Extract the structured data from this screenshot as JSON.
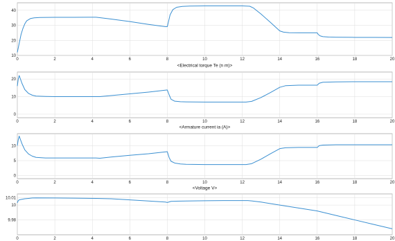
{
  "series_color": "#3a8fd1",
  "chart_data": [
    {
      "type": "line",
      "title": "",
      "xlim": [
        0,
        20
      ],
      "ylim": [
        10,
        45
      ],
      "xticks": [
        0,
        2,
        4,
        6,
        8,
        10,
        12,
        14,
        16,
        18,
        20
      ],
      "xtick_labels": [
        "0",
        "2",
        "4",
        "6",
        "8",
        "10",
        "12",
        "14",
        "16",
        "18",
        "20"
      ],
      "yticks": [
        10,
        20,
        30,
        40
      ],
      "ytick_labels": [
        "10",
        "20",
        "30",
        "40"
      ],
      "grid": true,
      "series": [
        {
          "x": [
            0,
            0.05,
            0.1,
            0.2,
            0.3,
            0.4,
            0.5,
            0.7,
            0.9,
            1.2,
            2,
            3,
            4.2,
            4.4,
            5,
            6,
            7,
            7.9,
            8.0,
            8.15,
            8.3,
            8.5,
            8.8,
            9.2,
            10,
            11,
            12,
            12.4,
            12.6,
            13,
            13.5,
            14.0,
            14.2,
            14.5,
            15,
            15.5,
            16.0,
            16.05,
            16.15,
            16.3,
            16.6,
            17,
            18,
            19,
            20
          ],
          "y": [
            12,
            15,
            18,
            24,
            28,
            31,
            33,
            34.5,
            35,
            35.2,
            35.3,
            35.3,
            35.4,
            35.1,
            34.2,
            32.5,
            30.6,
            29.1,
            29.1,
            37,
            40.5,
            42,
            42.6,
            42.8,
            42.9,
            42.9,
            42.9,
            42.7,
            41.5,
            37.5,
            32,
            26.3,
            25.5,
            25.1,
            25.0,
            25.0,
            25.0,
            24,
            23,
            22.5,
            22.2,
            22.1,
            22.0,
            22.0,
            21.9
          ]
        }
      ]
    },
    {
      "type": "line",
      "title": "<Electrical torque Te (n m)>",
      "xlim": [
        0,
        20
      ],
      "ylim": [
        -2,
        24
      ],
      "xticks": [
        0,
        2,
        4,
        6,
        8,
        10,
        12,
        14,
        16,
        18,
        20
      ],
      "xtick_labels": [
        "0",
        "2",
        "4",
        "6",
        "8",
        "10",
        "12",
        "14",
        "16",
        "18",
        "20"
      ],
      "yticks": [
        0,
        10,
        20
      ],
      "ytick_labels": [
        "0",
        "10",
        "20"
      ],
      "grid": true,
      "series": [
        {
          "x": [
            0,
            0.05,
            0.1,
            0.15,
            0.25,
            0.4,
            0.6,
            0.8,
            1.0,
            1.5,
            2,
            3,
            4.2,
            4.4,
            5,
            6,
            7,
            8.0,
            8.1,
            8.2,
            8.4,
            8.7,
            9,
            10,
            11,
            12.2,
            12.5,
            13,
            13.5,
            14.0,
            14.3,
            15,
            16.0,
            16.1,
            16.3,
            17,
            18,
            19,
            20
          ],
          "y": [
            16,
            20,
            22,
            20.5,
            17.5,
            14,
            11.8,
            10.8,
            10.3,
            10.1,
            10.0,
            10.0,
            10.0,
            10.0,
            10.6,
            11.6,
            12.6,
            13.8,
            11,
            8.5,
            7.4,
            7.1,
            7.0,
            6.9,
            6.9,
            6.9,
            7.3,
            9.5,
            12.3,
            15.3,
            16.2,
            16.5,
            16.5,
            17.6,
            18.2,
            18.4,
            18.5,
            18.5,
            18.5
          ]
        }
      ]
    },
    {
      "type": "line",
      "title": "<Armature current ia (A)>",
      "xlim": [
        0,
        20
      ],
      "ylim": [
        -1,
        14
      ],
      "xticks": [
        0,
        2,
        4,
        6,
        8,
        10,
        12,
        14,
        16,
        18,
        20
      ],
      "xtick_labels": [
        "0",
        "2",
        "4",
        "6",
        "8",
        "10",
        "12",
        "14",
        "16",
        "18",
        "20"
      ],
      "yticks": [
        0,
        5,
        10
      ],
      "ytick_labels": [
        "0",
        "5",
        "10"
      ],
      "grid": true,
      "series": [
        {
          "x": [
            0,
            0.05,
            0.1,
            0.15,
            0.25,
            0.4,
            0.6,
            0.8,
            1.0,
            1.5,
            2,
            3,
            4.2,
            4.4,
            5,
            6,
            7,
            8.0,
            8.1,
            8.2,
            8.4,
            8.7,
            9,
            10,
            11,
            12.2,
            12.5,
            13,
            13.5,
            14.0,
            14.3,
            15,
            16.0,
            16.1,
            16.3,
            17,
            18,
            19,
            20
          ],
          "y": [
            10,
            12,
            13.2,
            12.3,
            10.6,
            8.6,
            7.2,
            6.5,
            6.1,
            5.9,
            5.9,
            5.9,
            5.9,
            5.8,
            6.2,
            6.8,
            7.3,
            8.0,
            6.0,
            4.8,
            4.2,
            3.9,
            3.8,
            3.7,
            3.7,
            3.7,
            4.0,
            5.5,
            7.3,
            9.0,
            9.3,
            9.4,
            9.4,
            10.0,
            10.2,
            10.3,
            10.3,
            10.3,
            10.3
          ]
        }
      ]
    },
    {
      "type": "line",
      "title": "<Voltage V>",
      "xlim": [
        0,
        20
      ],
      "ylim": [
        9.96,
        10.015
      ],
      "xticks": [
        0,
        2,
        4,
        6,
        8,
        10,
        12,
        14,
        16,
        18,
        20
      ],
      "xtick_labels": [
        "0",
        "2",
        "4",
        "6",
        "8",
        "10",
        "12",
        "14",
        "16",
        "18",
        "20"
      ],
      "yticks": [
        9.98,
        10,
        10.01
      ],
      "ytick_labels": [
        "9.98",
        "10",
        "10.01"
      ],
      "grid": true,
      "series": [
        {
          "x": [
            0,
            0.05,
            0.1,
            0.2,
            0.4,
            0.6,
            0.8,
            1.0,
            2,
            3,
            4.2,
            5,
            6,
            7,
            7.9,
            8.0,
            8.2,
            9,
            10,
            11,
            12.3,
            12.5,
            13,
            14,
            15,
            16,
            17,
            18,
            19,
            20
          ],
          "y": [
            10.003,
            10.006,
            10.007,
            10.0075,
            10.0085,
            10.009,
            10.0095,
            10.0096,
            10.0095,
            10.0093,
            10.009,
            10.0085,
            10.007,
            10.0055,
            10.004,
            10.0035,
            10.005,
            10.0055,
            10.0058,
            10.006,
            10.006,
            10.0056,
            10.004,
            10.0,
            9.996,
            9.992,
            9.986,
            9.98,
            9.974,
            9.968
          ]
        }
      ]
    }
  ]
}
